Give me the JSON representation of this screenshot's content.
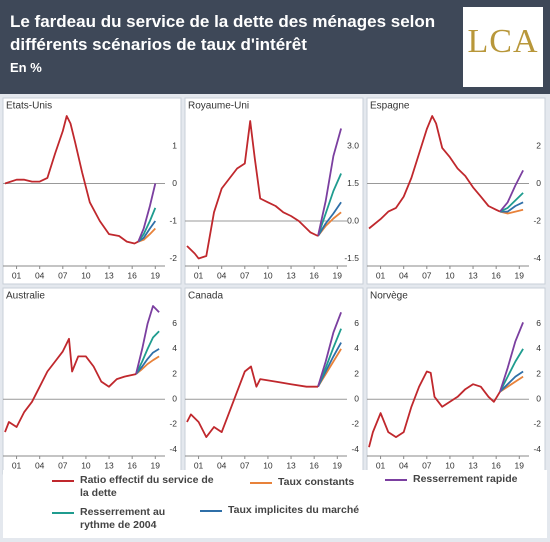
{
  "title": "Le fardeau du service de la dette des ménages selon différents scénarios de taux d'intérêt",
  "subtitle": "En %",
  "logo": "LCA",
  "legend": [
    {
      "name": "Ratio effectif du service de la dette",
      "color": "#c0282d"
    },
    {
      "name": "Taux constants",
      "color": "#e8823a"
    },
    {
      "name": "Resserrement rapide",
      "color": "#7b3fa0"
    },
    {
      "name": "Resserrement au rythme de 2004",
      "color": "#1f9c8f"
    },
    {
      "name": "Taux implicites du marché",
      "color": "#2f6fa8"
    }
  ],
  "chart_data": [
    {
      "type": "line",
      "title": "Etats-Unis",
      "xlim": [
        -0.5,
        20
      ],
      "xticks": [
        {
          "value": 1,
          "label": "01"
        },
        {
          "value": 4,
          "label": "04"
        },
        {
          "value": 7,
          "label": "07"
        },
        {
          "value": 10,
          "label": "10"
        },
        {
          "value": 13,
          "label": "13"
        },
        {
          "value": 16,
          "label": "16"
        },
        {
          "value": 19,
          "label": "19"
        }
      ],
      "ylim": [
        -2.2,
        1.8
      ],
      "yticks": [
        1,
        0,
        -1,
        -2
      ],
      "series": [
        {
          "x": [
            -0.5,
            1,
            2,
            3,
            4,
            5,
            6,
            7,
            7.5,
            8,
            8.6,
            9.5,
            10.5,
            11.8,
            13,
            14.3,
            15.3,
            16.3,
            16.8
          ],
          "values": [
            0,
            0.1,
            0.1,
            0.05,
            0.05,
            0.15,
            0.8,
            1.4,
            1.8,
            1.6,
            1.1,
            0.3,
            -0.5,
            -1.0,
            -1.35,
            -1.4,
            -1.55,
            -1.6,
            -1.55
          ]
        },
        {
          "x": [
            16.8,
            17.5,
            18.3,
            19
          ],
          "values": [
            -1.55,
            -1.5,
            -1.35,
            -1.2
          ]
        },
        {
          "x": [
            16.8,
            17.5,
            18.3,
            19
          ],
          "values": [
            -1.55,
            -1.2,
            -0.6,
            0.0
          ]
        },
        {
          "x": [
            16.8,
            17.5,
            18.3,
            19
          ],
          "values": [
            -1.55,
            -1.35,
            -1.0,
            -0.65
          ]
        },
        {
          "x": [
            16.8,
            17.5,
            18.3,
            19
          ],
          "values": [
            -1.55,
            -1.45,
            -1.2,
            -1.0
          ]
        }
      ]
    },
    {
      "type": "line",
      "title": "Royaume-Uni",
      "xlim": [
        -0.5,
        20
      ],
      "xticks": [
        {
          "value": 1,
          "label": "01"
        },
        {
          "value": 4,
          "label": "04"
        },
        {
          "value": 7,
          "label": "07"
        },
        {
          "value": 10,
          "label": "10"
        },
        {
          "value": 13,
          "label": "13"
        },
        {
          "value": 16,
          "label": "16"
        },
        {
          "value": 19,
          "label": "19"
        }
      ],
      "ylim": [
        -1.8,
        4.2
      ],
      "yticks": [
        {
          "value": 3,
          "label": "3.0"
        },
        1.5,
        {
          "value": 0,
          "label": "0.0"
        },
        -1.5
      ],
      "series": [
        {
          "x": [
            -0.5,
            0.5,
            1,
            2,
            3,
            4,
            5,
            6,
            7,
            7.7,
            8.3,
            9,
            10,
            11,
            12,
            13,
            14,
            15,
            15.5,
            16.5
          ],
          "values": [
            -1.0,
            -1.3,
            -1.5,
            -1.4,
            0.35,
            1.3,
            1.7,
            2.1,
            2.3,
            4.0,
            2.5,
            0.9,
            0.75,
            0.6,
            0.35,
            0.2,
            0,
            -0.3,
            -0.45,
            -0.6
          ]
        },
        {
          "x": [
            16.5,
            17.5,
            18.5,
            19.5
          ],
          "values": [
            -0.6,
            -0.2,
            0.1,
            0.35
          ]
        },
        {
          "x": [
            16.5,
            17.5,
            18.5,
            19.5
          ],
          "values": [
            -0.6,
            0.8,
            2.6,
            3.7
          ]
        },
        {
          "x": [
            16.5,
            17.5,
            18.5,
            19.5
          ],
          "values": [
            -0.6,
            0.3,
            1.2,
            1.9
          ]
        },
        {
          "x": [
            16.5,
            17.5,
            18.5,
            19.5
          ],
          "values": [
            -0.6,
            -0.1,
            0.3,
            0.75
          ]
        }
      ]
    },
    {
      "type": "line",
      "title": "Espagne",
      "xlim": [
        -0.5,
        20
      ],
      "xticks": [
        {
          "value": 1,
          "label": "01"
        },
        {
          "value": 4,
          "label": "04"
        },
        {
          "value": 7,
          "label": "07"
        },
        {
          "value": 10,
          "label": "10"
        },
        {
          "value": 13,
          "label": "13"
        },
        {
          "value": 16,
          "label": "16"
        },
        {
          "value": 19,
          "label": "19"
        }
      ],
      "ylim": [
        -4.4,
        3.6
      ],
      "yticks": [
        2,
        0,
        -2,
        -4
      ],
      "series": [
        {
          "x": [
            -0.5,
            1,
            2,
            3,
            4,
            5,
            6,
            7,
            7.7,
            8.2,
            9,
            10,
            11,
            12,
            13,
            14,
            15,
            16,
            16.5
          ],
          "values": [
            -2.4,
            -1.9,
            -1.5,
            -1.3,
            -0.7,
            0.3,
            1.6,
            2.9,
            3.6,
            3.2,
            1.9,
            1.4,
            0.8,
            0.4,
            -0.2,
            -0.7,
            -1.2,
            -1.4,
            -1.5
          ]
        },
        {
          "x": [
            16.5,
            17.5,
            18.5,
            19.5
          ],
          "values": [
            -1.5,
            -1.6,
            -1.5,
            -1.4
          ]
        },
        {
          "x": [
            16.5,
            17.5,
            18.5,
            19.5
          ],
          "values": [
            -1.5,
            -1.0,
            -0.1,
            0.7
          ]
        },
        {
          "x": [
            16.5,
            17.5,
            18.5,
            19.5
          ],
          "values": [
            -1.5,
            -1.3,
            -0.9,
            -0.5
          ]
        },
        {
          "x": [
            16.5,
            17.5,
            18.5,
            19.5
          ],
          "values": [
            -1.5,
            -1.5,
            -1.2,
            -1.0
          ]
        }
      ]
    },
    {
      "type": "line",
      "title": "Australie",
      "xlim": [
        -0.5,
        20
      ],
      "xticks": [
        {
          "value": 1,
          "label": "01"
        },
        {
          "value": 4,
          "label": "04"
        },
        {
          "value": 7,
          "label": "07"
        },
        {
          "value": 10,
          "label": "10"
        },
        {
          "value": 13,
          "label": "13"
        },
        {
          "value": 16,
          "label": "16"
        },
        {
          "value": 19,
          "label": "19"
        }
      ],
      "ylim": [
        -4.5,
        7.4
      ],
      "yticks": [
        6,
        4,
        2,
        0,
        -2,
        -4
      ],
      "series": [
        {
          "x": [
            -0.5,
            0,
            1,
            2,
            3,
            4,
            5,
            6,
            7,
            7.8,
            8.2,
            9,
            10,
            11,
            12,
            13,
            14,
            15,
            16.5
          ],
          "values": [
            -2.6,
            -1.8,
            -2.2,
            -1.0,
            -0.2,
            1.0,
            2.2,
            3.0,
            3.8,
            4.8,
            2.2,
            3.4,
            3.4,
            2.6,
            1.4,
            1.0,
            1.6,
            1.8,
            2.0
          ]
        },
        {
          "x": [
            16.5,
            17.3,
            18,
            18.7,
            19.5
          ],
          "values": [
            2.0,
            2.4,
            2.8,
            3.1,
            3.4
          ]
        },
        {
          "x": [
            16.5,
            17.3,
            18,
            18.7,
            19.5
          ],
          "values": [
            2.0,
            4.0,
            6.0,
            7.4,
            6.9
          ]
        },
        {
          "x": [
            16.5,
            17.3,
            18,
            18.7,
            19.5
          ],
          "values": [
            2.0,
            3.0,
            4.0,
            4.9,
            5.4
          ]
        },
        {
          "x": [
            16.5,
            17.3,
            18,
            18.7,
            19.5
          ],
          "values": [
            2.0,
            2.6,
            3.2,
            3.7,
            4.0
          ]
        }
      ]
    },
    {
      "type": "line",
      "title": "Canada",
      "xlim": [
        -0.5,
        20
      ],
      "xticks": [
        {
          "value": 1,
          "label": "01"
        },
        {
          "value": 4,
          "label": "04"
        },
        {
          "value": 7,
          "label": "07"
        },
        {
          "value": 10,
          "label": "10"
        },
        {
          "value": 13,
          "label": "13"
        },
        {
          "value": 16,
          "label": "16"
        },
        {
          "value": 19,
          "label": "19"
        }
      ],
      "ylim": [
        -4.5,
        7.4
      ],
      "yticks": [
        6,
        4,
        2,
        0,
        -2,
        -4
      ],
      "series": [
        {
          "x": [
            -0.5,
            0,
            1,
            2,
            3,
            4,
            5,
            6,
            7,
            7.8,
            8.5,
            9,
            11,
            13,
            15,
            16.5
          ],
          "values": [
            -1.8,
            -1.2,
            -1.8,
            -3.0,
            -2.2,
            -2.6,
            -1.0,
            0.6,
            2.2,
            2.6,
            1.0,
            1.6,
            1.4,
            1.2,
            1.0,
            1.0
          ]
        },
        {
          "x": [
            16.5,
            17.5,
            18.5,
            19.5
          ],
          "values": [
            1.0,
            2.0,
            3.0,
            4.0
          ]
        },
        {
          "x": [
            16.5,
            17.5,
            18.5,
            19.5
          ],
          "values": [
            1.0,
            3.0,
            5.3,
            6.9
          ]
        },
        {
          "x": [
            16.5,
            17.5,
            18.5,
            19.5
          ],
          "values": [
            1.0,
            2.5,
            4.1,
            5.6
          ]
        },
        {
          "x": [
            16.5,
            17.5,
            18.5,
            19.5
          ],
          "values": [
            1.0,
            2.2,
            3.4,
            4.5
          ]
        }
      ]
    },
    {
      "type": "line",
      "title": "Norvège",
      "xlim": [
        -0.5,
        20
      ],
      "xticks": [
        {
          "value": 1,
          "label": "01"
        },
        {
          "value": 4,
          "label": "04"
        },
        {
          "value": 7,
          "label": "07"
        },
        {
          "value": 10,
          "label": "10"
        },
        {
          "value": 13,
          "label": "13"
        },
        {
          "value": 16,
          "label": "16"
        },
        {
          "value": 19,
          "label": "19"
        }
      ],
      "ylim": [
        -4.5,
        7.4
      ],
      "yticks": [
        6,
        4,
        2,
        0,
        -2,
        -4
      ],
      "series": [
        {
          "x": [
            -0.5,
            0,
            1,
            2,
            3,
            4,
            5,
            6,
            7,
            7.5,
            8,
            9,
            10,
            11,
            12,
            13,
            14,
            15,
            15.7,
            16.5
          ],
          "values": [
            -3.8,
            -2.6,
            -1.1,
            -2.6,
            -3.0,
            -2.6,
            -0.6,
            1.0,
            2.2,
            2.1,
            0.2,
            -0.6,
            -0.2,
            0.2,
            0.8,
            1.2,
            1.0,
            0.2,
            -0.2,
            0.6
          ]
        },
        {
          "x": [
            16.5,
            17.5,
            18.5,
            19.5
          ],
          "values": [
            0.6,
            1.0,
            1.4,
            1.8
          ]
        },
        {
          "x": [
            16.5,
            17.5,
            18.5,
            19.5
          ],
          "values": [
            0.6,
            2.5,
            4.6,
            6.1
          ]
        },
        {
          "x": [
            16.5,
            17.5,
            18.5,
            19.5
          ],
          "values": [
            0.6,
            1.8,
            3.0,
            4.0
          ]
        },
        {
          "x": [
            16.5,
            17.5,
            18.5,
            19.5
          ],
          "values": [
            0.6,
            1.2,
            1.8,
            2.2
          ]
        }
      ]
    }
  ]
}
